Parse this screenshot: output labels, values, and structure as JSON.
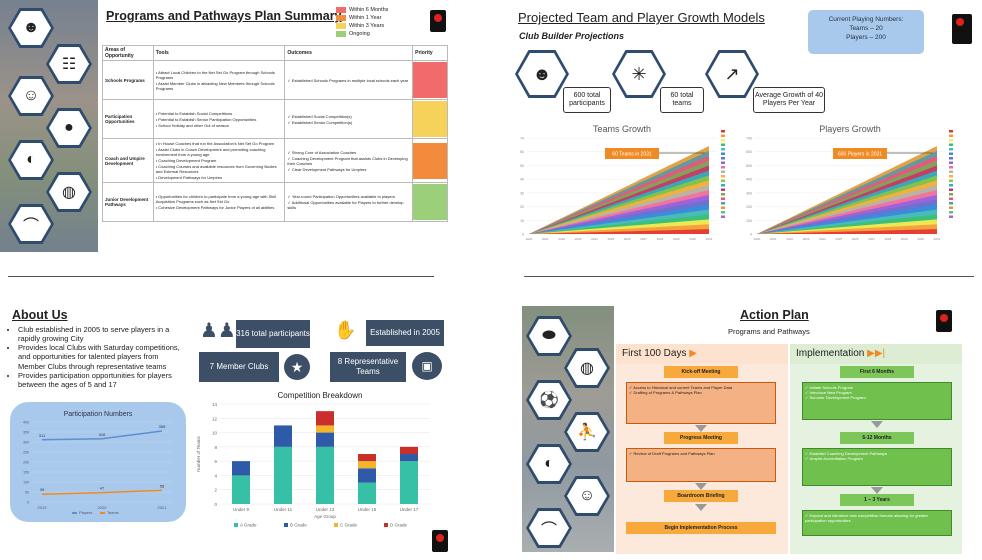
{
  "panel1": {
    "title": "Programs and Pathways Plan Summary",
    "legend": [
      {
        "label": "Within 6 Months",
        "color": "#f26b6b"
      },
      {
        "label": "Within 1 Year",
        "color": "#f28b3c"
      },
      {
        "label": "Within 3 Years",
        "color": "#f7d25a"
      },
      {
        "label": "Ongoing",
        "color": "#9ccf7a"
      }
    ],
    "headers": {
      "areas": "Areas of Opportunity",
      "tools": "Tools",
      "outcomes": "Outcomes",
      "priority": "Priority"
    },
    "rows": [
      {
        "area": "Schools Programs",
        "tools": [
          "Attract Local Children to the Net Set Go Program through Schools Programs",
          "Assist Member Clubs in attracting New Members through Schools Programs"
        ],
        "outcomes": [
          "Established Schools Programs in multiple local schools each year"
        ],
        "priority_colors": [
          "#f26b6b"
        ]
      },
      {
        "area": "Participation Opportunities",
        "tools": [
          "Potential to Establish Social Competitions",
          "Potential to Establish Senior Participation Opportunities",
          "School Holiday and other Out of season"
        ],
        "outcomes": [
          "Established Social Competition(s)",
          "Established Senior Competition(s)"
        ],
        "priority_colors": [
          "#f7d25a",
          "#f7d25a"
        ]
      },
      {
        "area": "Coach and Umpire Development",
        "tools": [
          "In House Coaches that run the Association's Net Set Go Program",
          "Assist Clubs in Coach Development and promoting coaching involvement from a young age",
          "Coaching Development Program",
          "Coaching Courses and available resources from Governing Bodies and External Resources",
          "Development Pathways for Umpires"
        ],
        "outcomes": [
          "Strong Core of Association Coaches",
          "Coaching Development Program that assists Clubs in Developing their Coaches",
          "Clear Development Pathways for Umpires"
        ],
        "priority_colors": [
          "#f28b3c",
          "#f28b3c",
          "#f28b3c"
        ]
      },
      {
        "area": "Junior Development Pathways",
        "tools": [
          "Opportunities for children to participate from a young age with Skill Acquisition Programs such as Net Set Go",
          "Cohesive Development Pathways for Junior Players of all abilities"
        ],
        "outcomes": [
          "Year-round Participation Opportunities available to players",
          "Additional Opportunities available for Players to further develop skills"
        ],
        "priority_colors": [
          "#9ccf7a",
          "#9ccf7a"
        ]
      }
    ],
    "icons": [
      "team-icon",
      "tactics-board-icon",
      "coach-icon",
      "player-icon",
      "volleyball-icon",
      "basketball-icon",
      "whistle-icon"
    ]
  },
  "panel2": {
    "title": "Projected Team and Player Growth Models",
    "subtitle": "Club Builder Projections",
    "current_box": {
      "heading": "Current Playing Numbers:",
      "teams": "Teams – 20",
      "players": "Players – 200"
    },
    "stats": [
      {
        "icon": "team-icon",
        "text": "600 total participants"
      },
      {
        "icon": "network-icon",
        "text": "60 total teams"
      },
      {
        "icon": "growth-icon",
        "text": "Average Growth of 40 Players Per Year"
      }
    ],
    "charts": [
      {
        "title": "Teams Growth",
        "callout": "60 Teams in 2031",
        "ymax": 70,
        "yticks": [
          "0",
          "10",
          "20",
          "30",
          "40",
          "50",
          "60",
          "70"
        ]
      },
      {
        "title": "Players Growth",
        "callout": "600 Players in 2031",
        "ymax": 700,
        "yticks": [
          "0",
          "100",
          "200",
          "300",
          "400",
          "500",
          "600",
          "700"
        ]
      }
    ],
    "years": [
      "2020",
      "2021",
      "2022",
      "2023",
      "2024",
      "2025",
      "2026",
      "2027",
      "2028",
      "2029",
      "2030",
      "2031"
    ]
  },
  "panel3": {
    "title": "About Us",
    "bullets": [
      "Club established in 2005 to serve players in a rapidly growing City",
      "Provides local Clubs with Saturday competitions, and opportunities for talented players from Member Clubs through representative teams",
      "Provides participation opportunities for players between the ages of 5 and 17"
    ],
    "stats": {
      "participants": "316 total participants",
      "established": "Established in 2005",
      "clubs": "7 Member Clubs",
      "rep": "8 Representative Teams"
    },
    "participation": {
      "title": "Participation Numbers",
      "years": [
        "2019",
        "2020",
        "2021"
      ],
      "players": [
        311,
        316,
        355
      ],
      "teams": [
        39,
        47,
        58
      ],
      "legend": [
        "Players",
        "Teams"
      ]
    }
  },
  "chart_data": {
    "type": "bar",
    "title": "Competition Breakdown",
    "categories": [
      "Under 9",
      "Under 11",
      "Under 13",
      "Under 15",
      "Under 17"
    ],
    "xlabel": "Age Group",
    "ylabel": "Number of Teams",
    "ylim": [
      0,
      14
    ],
    "yticks": [
      "0",
      "2",
      "4",
      "6",
      "8",
      "10",
      "12",
      "14"
    ],
    "series": [
      {
        "name": "A Grade",
        "color": "#36c0a5",
        "values": [
          4,
          8,
          8,
          3,
          6
        ]
      },
      {
        "name": "B Grade",
        "color": "#2f5aa8",
        "values": [
          2,
          3,
          2,
          2,
          1
        ]
      },
      {
        "name": "C Grade",
        "color": "#f2b52b",
        "values": [
          0,
          0,
          1,
          1,
          0
        ]
      },
      {
        "name": "D Grade",
        "color": "#c9302c",
        "values": [
          0,
          0,
          2,
          1,
          1
        ]
      }
    ]
  },
  "panel4": {
    "title": "Action Plan",
    "subtitle": "Programs and Pathways",
    "first100": {
      "heading": "First 100 Days",
      "steps": [
        {
          "head": "Kick-off Meeting",
          "items": [
            "Access to Historical and current Teams and Player Data",
            "Drafting of Programs & Pathways Plan"
          ]
        },
        {
          "head": "Progress Meeting",
          "items": [
            "Review of Draft Programs and Pathways Plan"
          ]
        },
        {
          "head": "Boardroom Briefing",
          "items": []
        },
        {
          "head": "Begin Implementation Process",
          "items": []
        }
      ]
    },
    "implementation": {
      "heading": "Implementation",
      "steps": [
        {
          "head": "First 6 Months",
          "items": [
            "Initiate Schools Program",
            "Introduce New Program",
            "Summer Development Program"
          ]
        },
        {
          "head": "6-12 Months",
          "items": [
            "Establish Coaching Development Pathways",
            "Umpire Accreditation Program"
          ]
        },
        {
          "head": "1 – 3 Years",
          "items": [
            "Expand and introduce new competition formats allowing for greater participation opportunities"
          ]
        }
      ]
    },
    "icons": [
      "rugby-ball-icon",
      "basketball-icon",
      "soccer-ball-icon",
      "kicking-player-icon",
      "volleyball-icon",
      "coach-icon",
      "whistle-icon"
    ]
  }
}
